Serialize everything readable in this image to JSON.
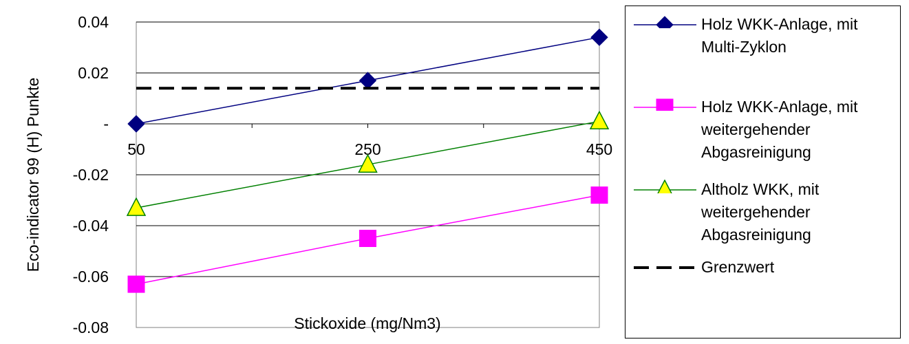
{
  "chart_data": {
    "type": "line",
    "title": "",
    "xlabel": "Stickoxide (mg/Nm3)",
    "ylabel": "Eco-indicator 99 (H) Punkte",
    "x_categories": [
      "50",
      "250",
      "450"
    ],
    "y_ticks": [
      {
        "value": 0.04,
        "label": "0.04"
      },
      {
        "value": 0.02,
        "label": "0.02"
      },
      {
        "value": 0,
        "label": "-"
      },
      {
        "value": -0.02,
        "label": "-0.02"
      },
      {
        "value": -0.04,
        "label": "-0.04"
      },
      {
        "value": -0.06,
        "label": "-0.06"
      },
      {
        "value": -0.08,
        "label": "-0.08"
      }
    ],
    "ylim": [
      -0.08,
      0.04
    ],
    "grid": true,
    "legend_position": "right",
    "series": [
      {
        "name_lines": [
          "Holz WKK-Anlage, mit",
          "Multi-Zyklon"
        ],
        "values": [
          0.0,
          0.017,
          0.034
        ],
        "color": "#000080",
        "marker": "diamond",
        "marker_fill": "#000080"
      },
      {
        "name_lines": [
          "Holz WKK-Anlage, mit",
          "weitergehender",
          "Abgasreinigung"
        ],
        "values": [
          -0.063,
          -0.045,
          -0.028
        ],
        "color": "#ff00ff",
        "marker": "square",
        "marker_fill": "#ff00ff"
      },
      {
        "name_lines": [
          "Altholz WKK, mit",
          "weitergehender",
          "Abgasreinigung"
        ],
        "values": [
          -0.033,
          -0.016,
          0.001
        ],
        "color": "#008000",
        "marker": "triangle",
        "marker_fill": "#ffff00"
      },
      {
        "name_lines": [
          "Grenzwert"
        ],
        "values": [
          0.014,
          0.014,
          0.014
        ],
        "color": "#000000",
        "marker": "none",
        "dashed": true
      }
    ]
  }
}
